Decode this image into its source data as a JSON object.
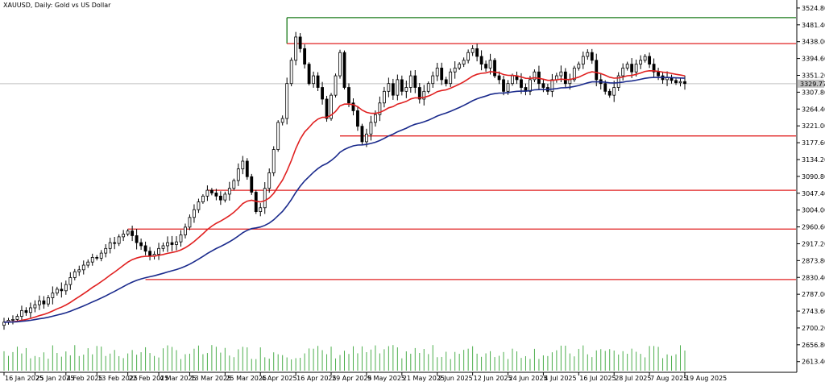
{
  "header": {
    "title": "XAUUSD, Daily:  Gold vs US Dollar"
  },
  "current_price": "3329.77",
  "colors": {
    "candle_outline": "#000000",
    "bull_fill": "#ffffff",
    "bear_fill": "#000000",
    "ma_fast": "#e02020",
    "ma_slow": "#1a2a8c",
    "sr_line": "#e02020",
    "top_line": "#1a7a1a",
    "volume": "#4cae4c",
    "price_line": "#c0c0c0"
  },
  "chart_data": {
    "type": "candlestick",
    "title": "XAUUSD, Daily:  Gold vs US Dollar",
    "y_ticks": [
      "3524.80",
      "3481.40",
      "3438.00",
      "3394.60",
      "3351.20",
      "3307.80",
      "3264.40",
      "3221.00",
      "3177.60",
      "3134.20",
      "3090.80",
      "3047.40",
      "3004.00",
      "2960.60",
      "2917.20",
      "2873.80",
      "2830.40",
      "2787.00",
      "2743.60",
      "2700.20",
      "2656.80",
      "2613.40"
    ],
    "ylim": [
      2590,
      3535
    ],
    "x_ticks": [
      {
        "label": "16 Jan 2025",
        "day": 0
      },
      {
        "label": "25 Jan 2025",
        "day": 7
      },
      {
        "label": "4 Feb 2025",
        "day": 14
      },
      {
        "label": "13 Feb 2025",
        "day": 21
      },
      {
        "label": "22 Feb 2025",
        "day": 28
      },
      {
        "label": "4 Mar 2025",
        "day": 35
      },
      {
        "label": "13 Mar 2025",
        "day": 42
      },
      {
        "label": "25 Mar 2025",
        "day": 50
      },
      {
        "label": "4 Apr 2025",
        "day": 58
      },
      {
        "label": "16 Apr 2025",
        "day": 66
      },
      {
        "label": "29 Apr 2025",
        "day": 74
      },
      {
        "label": "9 May 2025",
        "day": 82
      },
      {
        "label": "21 May 2025",
        "day": 90
      },
      {
        "label": "2 Jun 2025",
        "day": 98
      },
      {
        "label": "12 Jun 2025",
        "day": 106
      },
      {
        "label": "24 Jun 2025",
        "day": 114
      },
      {
        "label": "4 Jul 2025",
        "day": 122
      },
      {
        "label": "16 Jul 2025",
        "day": 130
      },
      {
        "label": "28 Jul 2025",
        "day": 138
      },
      {
        "label": "7 Aug 2025",
        "day": 146
      },
      {
        "label": "19 Aug 2025",
        "day": 154
      }
    ],
    "horizontal_levels": [
      {
        "kind": "top",
        "price": 3500,
        "from_day": 64
      },
      {
        "kind": "sr",
        "price": 3433,
        "from_day": 64
      },
      {
        "kind": "sr",
        "price": 3195,
        "from_day": 76
      },
      {
        "kind": "sr",
        "price": 3055,
        "from_day": 46
      },
      {
        "kind": "sr",
        "price": 2955,
        "from_day": 28
      },
      {
        "kind": "sr",
        "price": 2825,
        "from_day": 32
      }
    ],
    "closes": [
      2715,
      2720,
      2722,
      2730,
      2745,
      2740,
      2752,
      2760,
      2770,
      2762,
      2778,
      2790,
      2800,
      2796,
      2812,
      2830,
      2845,
      2850,
      2862,
      2870,
      2882,
      2880,
      2893,
      2905,
      2920,
      2918,
      2935,
      2942,
      2950,
      2938,
      2920,
      2912,
      2898,
      2885,
      2890,
      2905,
      2912,
      2920,
      2915,
      2922,
      2940,
      2960,
      2985,
      3005,
      3025,
      3040,
      3055,
      3048,
      3040,
      3030,
      3045,
      3060,
      3080,
      3110,
      3130,
      3090,
      3050,
      3000,
      3010,
      3060,
      3100,
      3160,
      3230,
      3240,
      3330,
      3390,
      3450,
      3420,
      3380,
      3330,
      3350,
      3320,
      3290,
      3240,
      3300,
      3350,
      3410,
      3320,
      3280,
      3260,
      3220,
      3180,
      3200,
      3230,
      3250,
      3280,
      3310,
      3330,
      3300,
      3340,
      3310,
      3320,
      3350,
      3320,
      3290,
      3310,
      3330,
      3350,
      3370,
      3340,
      3330,
      3360,
      3370,
      3380,
      3390,
      3410,
      3420,
      3400,
      3380,
      3370,
      3390,
      3350,
      3340,
      3310,
      3330,
      3350,
      3340,
      3320,
      3310,
      3340,
      3360,
      3330,
      3320,
      3310,
      3340,
      3350,
      3360,
      3330,
      3340,
      3370,
      3380,
      3400,
      3410,
      3390,
      3340,
      3330,
      3310,
      3300,
      3320,
      3350,
      3370,
      3380,
      3360,
      3380,
      3390,
      3400,
      3380,
      3360,
      3350,
      3340,
      3345,
      3338,
      3332,
      3335,
      3330
    ]
  }
}
